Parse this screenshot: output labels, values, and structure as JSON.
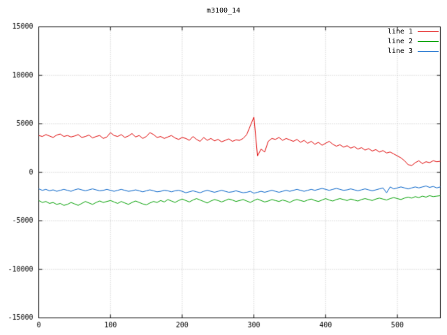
{
  "title": "m3100_14",
  "chart_data": {
    "type": "line",
    "title": "m3100_14",
    "xlabel": "",
    "ylabel": "",
    "xlim": [
      0,
      560
    ],
    "ylim": [
      -15000,
      15000
    ],
    "xticks": [
      0,
      100,
      200,
      300,
      400,
      500
    ],
    "yticks": [
      -15000,
      -10000,
      -5000,
      0,
      5000,
      10000,
      15000
    ],
    "grid": true,
    "grid_style": "dotted",
    "legend_position": "top-right",
    "x_step": 5,
    "colors": {
      "background": "#ffffff",
      "border": "#000000",
      "grid": "#b8b8b8",
      "text": "#000000"
    },
    "series": [
      {
        "name": "line 1",
        "color": "#e00000",
        "values": [
          3800,
          3700,
          3900,
          3750,
          3600,
          3850,
          3950,
          3700,
          3800,
          3650,
          3750,
          3900,
          3600,
          3700,
          3850,
          3550,
          3700,
          3800,
          3500,
          3650,
          4100,
          3800,
          3700,
          3900,
          3600,
          3750,
          4000,
          3650,
          3800,
          3500,
          3700,
          4100,
          3900,
          3600,
          3700,
          3500,
          3650,
          3800,
          3550,
          3400,
          3600,
          3500,
          3300,
          3700,
          3400,
          3200,
          3600,
          3300,
          3500,
          3250,
          3400,
          3150,
          3300,
          3450,
          3200,
          3350,
          3300,
          3500,
          3900,
          4800,
          5700,
          1700,
          2400,
          2100,
          3200,
          3500,
          3400,
          3600,
          3300,
          3500,
          3350,
          3200,
          3400,
          3100,
          3300,
          3000,
          3200,
          2900,
          3100,
          2800,
          3000,
          3200,
          2900,
          2700,
          2850,
          2600,
          2750,
          2500,
          2650,
          2400,
          2550,
          2300,
          2450,
          2200,
          2350,
          2100,
          2250,
          2000,
          2100,
          1900,
          1700,
          1500,
          1200,
          800,
          700,
          1000,
          1200,
          900,
          1100,
          1000,
          1200,
          1100,
          1150
        ]
      },
      {
        "name": "line 2",
        "color": "#00a000",
        "values": [
          -2900,
          -3100,
          -3000,
          -3200,
          -3100,
          -3300,
          -3200,
          -3400,
          -3300,
          -3100,
          -3250,
          -3400,
          -3200,
          -3000,
          -3150,
          -3300,
          -3100,
          -2950,
          -3100,
          -3000,
          -2900,
          -3050,
          -3200,
          -3000,
          -3150,
          -3300,
          -3100,
          -2950,
          -3100,
          -3250,
          -3350,
          -3150,
          -3000,
          -3100,
          -2900,
          -3050,
          -2800,
          -2950,
          -3100,
          -2900,
          -2750,
          -2900,
          -3050,
          -2850,
          -2700,
          -2850,
          -3000,
          -3150,
          -2950,
          -2800,
          -2900,
          -3050,
          -2900,
          -2750,
          -2850,
          -3000,
          -2900,
          -2800,
          -2950,
          -3100,
          -2900,
          -2750,
          -2900,
          -3050,
          -2950,
          -2800,
          -2900,
          -3000,
          -2850,
          -2950,
          -3100,
          -2900,
          -2800,
          -2900,
          -3000,
          -2850,
          -2750,
          -2900,
          -3000,
          -2850,
          -2700,
          -2850,
          -2950,
          -2800,
          -2700,
          -2800,
          -2900,
          -2750,
          -2850,
          -2950,
          -2800,
          -2700,
          -2800,
          -2900,
          -2750,
          -2650,
          -2750,
          -2850,
          -2700,
          -2600,
          -2700,
          -2800,
          -2650,
          -2550,
          -2650,
          -2500,
          -2600,
          -2450,
          -2550,
          -2400,
          -2500,
          -2450,
          -2400
        ]
      },
      {
        "name": "line 3",
        "color": "#0060c8",
        "values": [
          -1700,
          -1850,
          -1750,
          -1900,
          -1800,
          -1950,
          -1850,
          -1750,
          -1850,
          -1950,
          -1800,
          -1700,
          -1800,
          -1900,
          -1800,
          -1700,
          -1800,
          -1900,
          -1850,
          -1750,
          -1850,
          -1950,
          -1850,
          -1750,
          -1850,
          -1950,
          -1900,
          -1800,
          -1900,
          -2000,
          -1900,
          -1800,
          -1900,
          -2000,
          -1950,
          -1850,
          -1900,
          -2000,
          -1900,
          -1850,
          -1950,
          -2100,
          -2000,
          -1900,
          -2000,
          -2100,
          -1950,
          -1850,
          -1950,
          -2050,
          -1950,
          -1850,
          -1950,
          -2050,
          -2000,
          -1900,
          -2000,
          -2100,
          -2050,
          -1950,
          -2150,
          -2050,
          -1950,
          -2050,
          -1950,
          -1850,
          -1950,
          -2050,
          -1950,
          -1850,
          -1950,
          -1850,
          -1750,
          -1850,
          -1950,
          -1850,
          -1750,
          -1850,
          -1750,
          -1650,
          -1750,
          -1850,
          -1750,
          -1650,
          -1750,
          -1850,
          -1800,
          -1700,
          -1800,
          -1900,
          -1800,
          -1700,
          -1800,
          -1900,
          -1800,
          -1700,
          -1600,
          -2100,
          -1500,
          -1700,
          -1600,
          -1500,
          -1600,
          -1700,
          -1600,
          -1500,
          -1600,
          -1500,
          -1400,
          -1550,
          -1450,
          -1600,
          -1500
        ]
      }
    ]
  }
}
